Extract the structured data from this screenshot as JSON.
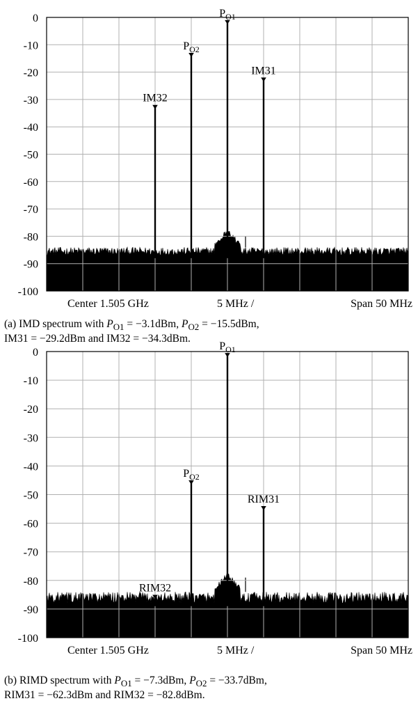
{
  "chart_data": [
    {
      "type": "line",
      "ylim": [
        -100,
        0
      ],
      "yticks": [
        0,
        -10,
        -20,
        -30,
        -40,
        -50,
        -60,
        -70,
        -80,
        -90,
        -100
      ],
      "xlim": [
        -5,
        5
      ],
      "x_unit": "5 MHz /",
      "x_divisions": 10,
      "grid": true,
      "noise_floor": [
        -87,
        -84
      ],
      "bottom_labels": {
        "left": "Center 1.505 GHz",
        "mid": "5 MHz /",
        "right": "Span 50 MHz"
      },
      "spurs": [
        {
          "x": 0.5,
          "y": -80
        }
      ],
      "markers": [
        {
          "name": "IM32",
          "label": "IM32",
          "x": -2,
          "y": -34.3
        },
        {
          "name": "PO2",
          "label": "P",
          "sub": "O2",
          "x": -1,
          "y": -15.5
        },
        {
          "name": "PO1",
          "label": "P",
          "sub": "O1",
          "x": 0,
          "y": -3.1
        },
        {
          "name": "IM31",
          "label": "IM31",
          "x": 1,
          "y": -29.2
        }
      ],
      "display_heights": [
        -33,
        -14,
        -2,
        -23
      ],
      "caption": {
        "prefix": "(a) IMD spectrum with ",
        "p1_var": "P",
        "p1_sub": "O1",
        "p1_val": " = −3.1dBm, ",
        "p2_var": "P",
        "p2_sub": "O2",
        "p2_val": " = −15.5dBm,",
        "line2": "IM31 = −29.2dBm and IM32 = −34.3dBm."
      }
    },
    {
      "type": "line",
      "ylim": [
        -100,
        0
      ],
      "yticks": [
        0,
        -10,
        -20,
        -30,
        -40,
        -50,
        -60,
        -70,
        -80,
        -90,
        -100
      ],
      "xlim": [
        -5,
        5
      ],
      "x_unit": "5 MHz /",
      "x_divisions": 10,
      "grid": true,
      "noise_floor": [
        -88,
        -84
      ],
      "bottom_labels": {
        "left": "Center 1.505 GHz",
        "mid": "5 MHz /",
        "right": "Span 50 MHz"
      },
      "spurs": [
        {
          "x": 0,
          "y": -73
        },
        {
          "x": 0.5,
          "y": -79
        }
      ],
      "markers": [
        {
          "name": "RIM32",
          "label": "RIM32",
          "x": -2,
          "y": -82.8
        },
        {
          "name": "PO2",
          "label": "P",
          "sub": "O2",
          "x": -1,
          "y": -33.7
        },
        {
          "name": "PO1",
          "label": "P",
          "sub": "O1",
          "x": 0,
          "y": -7.3
        },
        {
          "name": "RIM31",
          "label": "RIM31",
          "x": 1,
          "y": -62.3
        }
      ],
      "display_heights": [
        -86,
        -46,
        -1.5,
        -55
      ],
      "caption": {
        "prefix": "(b) RIMD spectrum with ",
        "p1_var": "P",
        "p1_sub": "O1",
        "p1_val": " = −7.3dBm, ",
        "p2_var": "P",
        "p2_sub": "O2",
        "p2_val": " = −33.7dBm,",
        "line2": "RIM31 = −62.3dBm and RIM32 = −82.8dBm."
      }
    }
  ]
}
